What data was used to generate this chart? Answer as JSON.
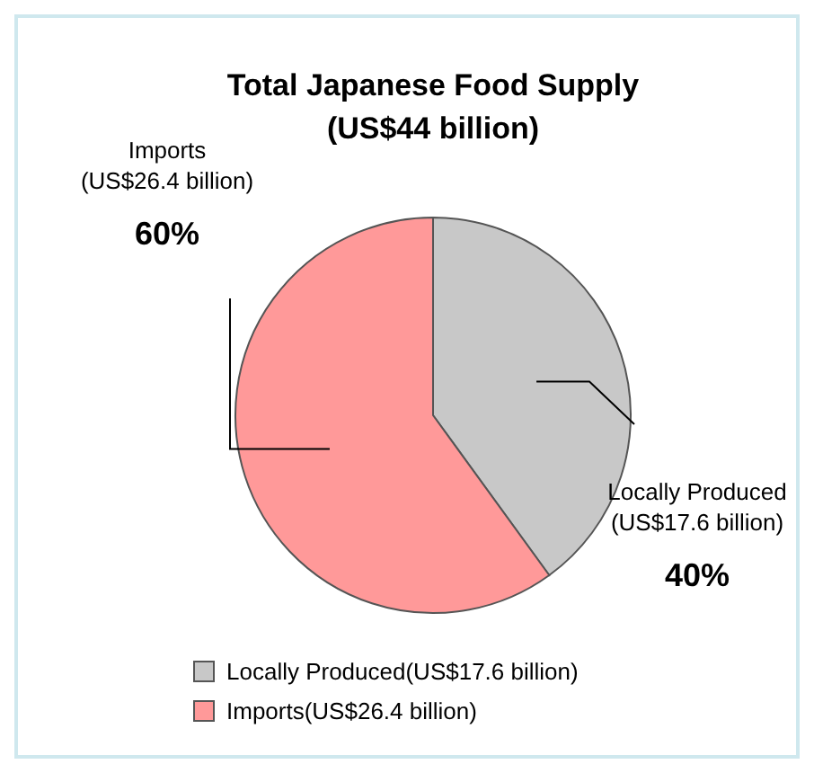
{
  "chart_data": {
    "type": "pie",
    "title": "Total Japanese Food Supply",
    "subtitle": "(US$44 billion)",
    "categories": [
      "Locally Produced(US$17.6 billion)",
      "Imports(US$26.4 billion)"
    ],
    "values": [
      40,
      60
    ],
    "colors": [
      "#c8c8c8",
      "#ff9999"
    ],
    "value_labels": [
      "40%",
      "60%"
    ],
    "legend": "bottom"
  }
}
